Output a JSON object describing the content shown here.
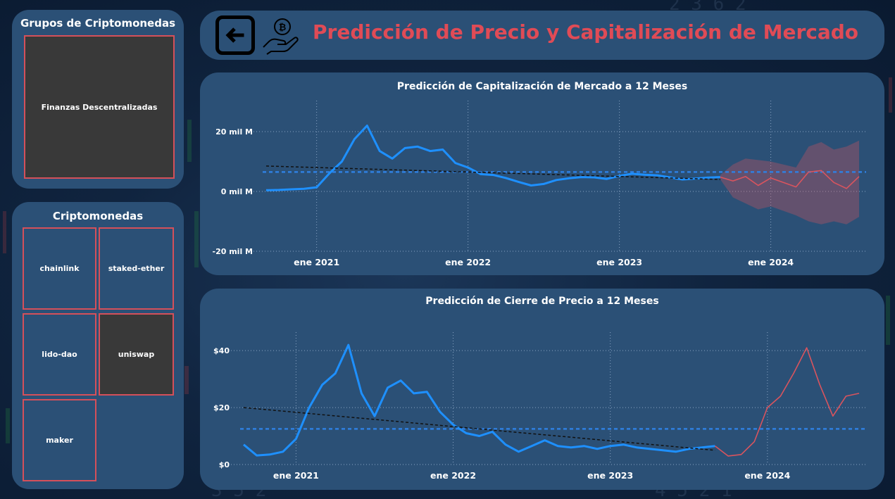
{
  "header": {
    "title": "Predicción de Precio y Capitalización de Mercado",
    "back_icon": "arrow-left-icon",
    "logo_icon": "bitcoin-hand-icon"
  },
  "groups_panel": {
    "title": "Grupos de Criptomonedas",
    "items": [
      {
        "label": "Finanzas Descentralizadas",
        "selected": true
      }
    ]
  },
  "coins_panel": {
    "title": "Criptomonedas",
    "items": [
      {
        "label": "chainlink",
        "selected": false
      },
      {
        "label": "staked-ether",
        "selected": false
      },
      {
        "label": "lido-dao",
        "selected": false
      },
      {
        "label": "uniswap",
        "selected": true
      },
      {
        "label": "maker",
        "selected": false
      }
    ]
  },
  "colors": {
    "accent": "#e04b56",
    "historical": "#1e90ff",
    "forecast": "#d9545e",
    "trend": "#111111",
    "mean_line": "#2f7fe0",
    "panel": "#2b5076"
  },
  "chart_data": [
    {
      "type": "line",
      "title": "Predicción de Capitalización de Mercado a 12 Meses",
      "x_ticks": [
        "ene 2021",
        "ene 2022",
        "ene 2023",
        "ene 2024"
      ],
      "y_ticks": [
        "20 mil M",
        "0 mil M",
        "-20 mil M"
      ],
      "y_tick_values": [
        20,
        0,
        -20
      ],
      "ylim": [
        -20,
        28
      ],
      "xlim": [
        "2020-09",
        "2024-08"
      ],
      "units": "mil M",
      "mean_value": 6.5,
      "trend": {
        "start": [
          "2020-09",
          8.5
        ],
        "end": [
          "2023-09",
          4.0
        ]
      },
      "series": [
        {
          "role": "historical",
          "points": [
            [
              "2020-09",
              0.4
            ],
            [
              "2020-10",
              0.5
            ],
            [
              "2020-11",
              0.7
            ],
            [
              "2020-12",
              0.9
            ],
            [
              "2021-01",
              1.4
            ],
            [
              "2021-02",
              6.0
            ],
            [
              "2021-03",
              10.0
            ],
            [
              "2021-04",
              17.5
            ],
            [
              "2021-05",
              22.0
            ],
            [
              "2021-06",
              13.5
            ],
            [
              "2021-07",
              11.0
            ],
            [
              "2021-08",
              14.5
            ],
            [
              "2021-09",
              15.0
            ],
            [
              "2021-10",
              13.5
            ],
            [
              "2021-11",
              14.0
            ],
            [
              "2021-12",
              9.5
            ],
            [
              "2022-01",
              8.0
            ],
            [
              "2022-02",
              5.8
            ],
            [
              "2022-03",
              5.5
            ],
            [
              "2022-04",
              4.5
            ],
            [
              "2022-05",
              3.2
            ],
            [
              "2022-06",
              2.0
            ],
            [
              "2022-07",
              2.5
            ],
            [
              "2022-08",
              3.8
            ],
            [
              "2022-09",
              4.4
            ],
            [
              "2022-10",
              4.8
            ],
            [
              "2022-11",
              4.7
            ],
            [
              "2022-12",
              4.2
            ],
            [
              "2023-01",
              5.2
            ],
            [
              "2023-02",
              5.9
            ],
            [
              "2023-03",
              5.6
            ],
            [
              "2023-04",
              5.4
            ],
            [
              "2023-05",
              4.7
            ],
            [
              "2023-06",
              4.0
            ],
            [
              "2023-07",
              4.3
            ],
            [
              "2023-08",
              4.6
            ],
            [
              "2023-09",
              4.8
            ]
          ]
        },
        {
          "role": "forecast",
          "points": [
            [
              "2023-09",
              4.8
            ],
            [
              "2023-10",
              3.5
            ],
            [
              "2023-11",
              5.0
            ],
            [
              "2023-12",
              2.0
            ],
            [
              "2024-01",
              4.5
            ],
            [
              "2024-02",
              3.0
            ],
            [
              "2024-03",
              1.5
            ],
            [
              "2024-04",
              6.5
            ],
            [
              "2024-05",
              7.0
            ],
            [
              "2024-06",
              3.0
            ],
            [
              "2024-07",
              1.0
            ],
            [
              "2024-08",
              5.0
            ]
          ],
          "band_upper": [
            5.5,
            9.0,
            11.0,
            10.5,
            10.0,
            9.0,
            8.0,
            15.0,
            16.5,
            14.0,
            15.0,
            17.0
          ],
          "band_lower": [
            4.0,
            -2.0,
            -4.0,
            -6.0,
            -5.0,
            -6.5,
            -8.0,
            -10.0,
            -11.0,
            -10.0,
            -11.0,
            -8.5
          ]
        }
      ]
    },
    {
      "type": "line",
      "title": "Predicción de Cierre de Precio a 12 Meses",
      "x_ticks": [
        "ene 2021",
        "ene 2022",
        "ene 2023",
        "ene 2024"
      ],
      "y_ticks": [
        "$40",
        "$20",
        "$0"
      ],
      "y_tick_values": [
        40,
        20,
        0
      ],
      "ylim": [
        0,
        44
      ],
      "xlim": [
        "2020-09",
        "2024-08"
      ],
      "mean_value": 12.5,
      "trend": {
        "start": [
          "2020-09",
          20.0
        ],
        "end": [
          "2023-09",
          5.0
        ]
      },
      "series": [
        {
          "role": "historical",
          "points": [
            [
              "2020-09",
              7.0
            ],
            [
              "2020-10",
              3.2
            ],
            [
              "2020-11",
              3.5
            ],
            [
              "2020-12",
              4.5
            ],
            [
              "2021-01",
              9.0
            ],
            [
              "2021-02",
              20.0
            ],
            [
              "2021-03",
              28.0
            ],
            [
              "2021-04",
              32.0
            ],
            [
              "2021-05",
              42.0
            ],
            [
              "2021-06",
              25.0
            ],
            [
              "2021-07",
              17.0
            ],
            [
              "2021-08",
              27.0
            ],
            [
              "2021-09",
              29.5
            ],
            [
              "2021-10",
              25.0
            ],
            [
              "2021-11",
              25.5
            ],
            [
              "2021-12",
              18.5
            ],
            [
              "2022-01",
              14.0
            ],
            [
              "2022-02",
              11.0
            ],
            [
              "2022-03",
              10.0
            ],
            [
              "2022-04",
              11.5
            ],
            [
              "2022-05",
              7.0
            ],
            [
              "2022-06",
              4.5
            ],
            [
              "2022-07",
              6.5
            ],
            [
              "2022-08",
              8.5
            ],
            [
              "2022-09",
              6.5
            ],
            [
              "2022-10",
              6.0
            ],
            [
              "2022-11",
              6.5
            ],
            [
              "2022-12",
              5.5
            ],
            [
              "2023-01",
              6.5
            ],
            [
              "2023-02",
              7.0
            ],
            [
              "2023-03",
              6.0
            ],
            [
              "2023-04",
              5.5
            ],
            [
              "2023-05",
              5.0
            ],
            [
              "2023-06",
              4.5
            ],
            [
              "2023-07",
              5.5
            ],
            [
              "2023-08",
              6.0
            ],
            [
              "2023-09",
              6.5
            ]
          ]
        },
        {
          "role": "forecast",
          "points": [
            [
              "2023-09",
              6.5
            ],
            [
              "2023-10",
              3.0
            ],
            [
              "2023-11",
              3.5
            ],
            [
              "2023-12",
              8.0
            ],
            [
              "2024-01",
              20.0
            ],
            [
              "2024-02",
              24.0
            ],
            [
              "2024-03",
              32.0
            ],
            [
              "2024-04",
              41.0
            ],
            [
              "2024-05",
              28.0
            ],
            [
              "2024-06",
              17.0
            ],
            [
              "2024-07",
              24.0
            ],
            [
              "2024-08",
              25.0
            ]
          ]
        }
      ]
    }
  ]
}
